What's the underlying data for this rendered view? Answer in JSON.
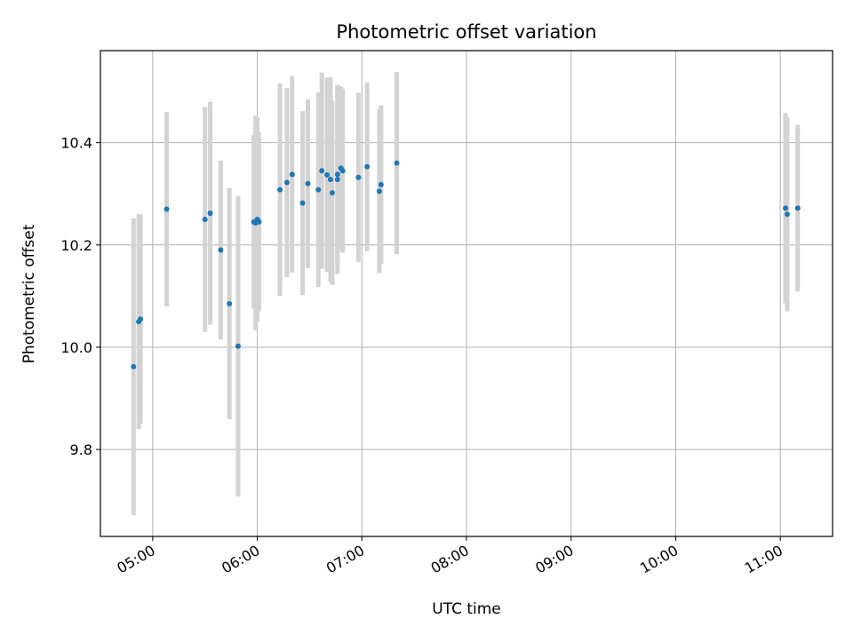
{
  "chart_data": {
    "type": "scatter",
    "title": "Photometric offset variation",
    "xlabel": "UTC time",
    "ylabel": "Photometric offset",
    "x_axis_type": "time",
    "xlim": [
      "04:30",
      "11:30"
    ],
    "ylim": [
      9.63,
      10.58
    ],
    "x_ticks": [
      "05:00",
      "06:00",
      "07:00",
      "08:00",
      "09:00",
      "10:00",
      "11:00"
    ],
    "y_ticks": [
      9.8,
      10.0,
      10.2,
      10.4
    ],
    "y_tick_labels": [
      "9.8",
      "10.0",
      "10.2",
      "10.4"
    ],
    "grid": true,
    "point_color": "#1f77b4",
    "errorbar_color": "#d3d3d3",
    "points": [
      {
        "t": "04:49",
        "y": 9.962,
        "err": 0.29
      },
      {
        "t": "04:52",
        "y": 10.05,
        "err": 0.21
      },
      {
        "t": "04:53",
        "y": 10.055,
        "err": 0.205
      },
      {
        "t": "05:08",
        "y": 10.27,
        "err": 0.19
      },
      {
        "t": "05:30",
        "y": 10.25,
        "err": 0.22
      },
      {
        "t": "05:33",
        "y": 10.262,
        "err": 0.218
      },
      {
        "t": "05:39",
        "y": 10.19,
        "err": 0.175
      },
      {
        "t": "05:44",
        "y": 10.085,
        "err": 0.226
      },
      {
        "t": "05:49",
        "y": 10.002,
        "err": 0.294
      },
      {
        "t": "05:58",
        "y": 10.245,
        "err": 0.17
      },
      {
        "t": "05:59",
        "y": 10.243,
        "err": 0.21
      },
      {
        "t": "06:00",
        "y": 10.25,
        "err": 0.2
      },
      {
        "t": "06:01",
        "y": 10.245,
        "err": 0.175
      },
      {
        "t": "06:13",
        "y": 10.308,
        "err": 0.208
      },
      {
        "t": "06:17",
        "y": 10.322,
        "err": 0.185
      },
      {
        "t": "06:20",
        "y": 10.338,
        "err": 0.192
      },
      {
        "t": "06:26",
        "y": 10.282,
        "err": 0.18
      },
      {
        "t": "06:29",
        "y": 10.32,
        "err": 0.165
      },
      {
        "t": "06:35",
        "y": 10.308,
        "err": 0.19
      },
      {
        "t": "06:37",
        "y": 10.345,
        "err": 0.192
      },
      {
        "t": "06:40",
        "y": 10.337,
        "err": 0.19
      },
      {
        "t": "06:42",
        "y": 10.328,
        "err": 0.2
      },
      {
        "t": "06:43",
        "y": 10.302,
        "err": 0.18
      },
      {
        "t": "06:46",
        "y": 10.338,
        "err": 0.175
      },
      {
        "t": "06:46",
        "y": 10.328,
        "err": 0.185
      },
      {
        "t": "06:48",
        "y": 10.35,
        "err": 0.16
      },
      {
        "t": "06:49",
        "y": 10.345,
        "err": 0.16
      },
      {
        "t": "06:58",
        "y": 10.332,
        "err": 0.165
      },
      {
        "t": "07:03",
        "y": 10.353,
        "err": 0.165
      },
      {
        "t": "07:10",
        "y": 10.305,
        "err": 0.16
      },
      {
        "t": "07:11",
        "y": 10.318,
        "err": 0.155
      },
      {
        "t": "07:20",
        "y": 10.36,
        "err": 0.178
      },
      {
        "t": "11:03",
        "y": 10.272,
        "err": 0.186
      },
      {
        "t": "11:04",
        "y": 10.26,
        "err": 0.19
      },
      {
        "t": "11:10",
        "y": 10.272,
        "err": 0.163
      }
    ]
  }
}
